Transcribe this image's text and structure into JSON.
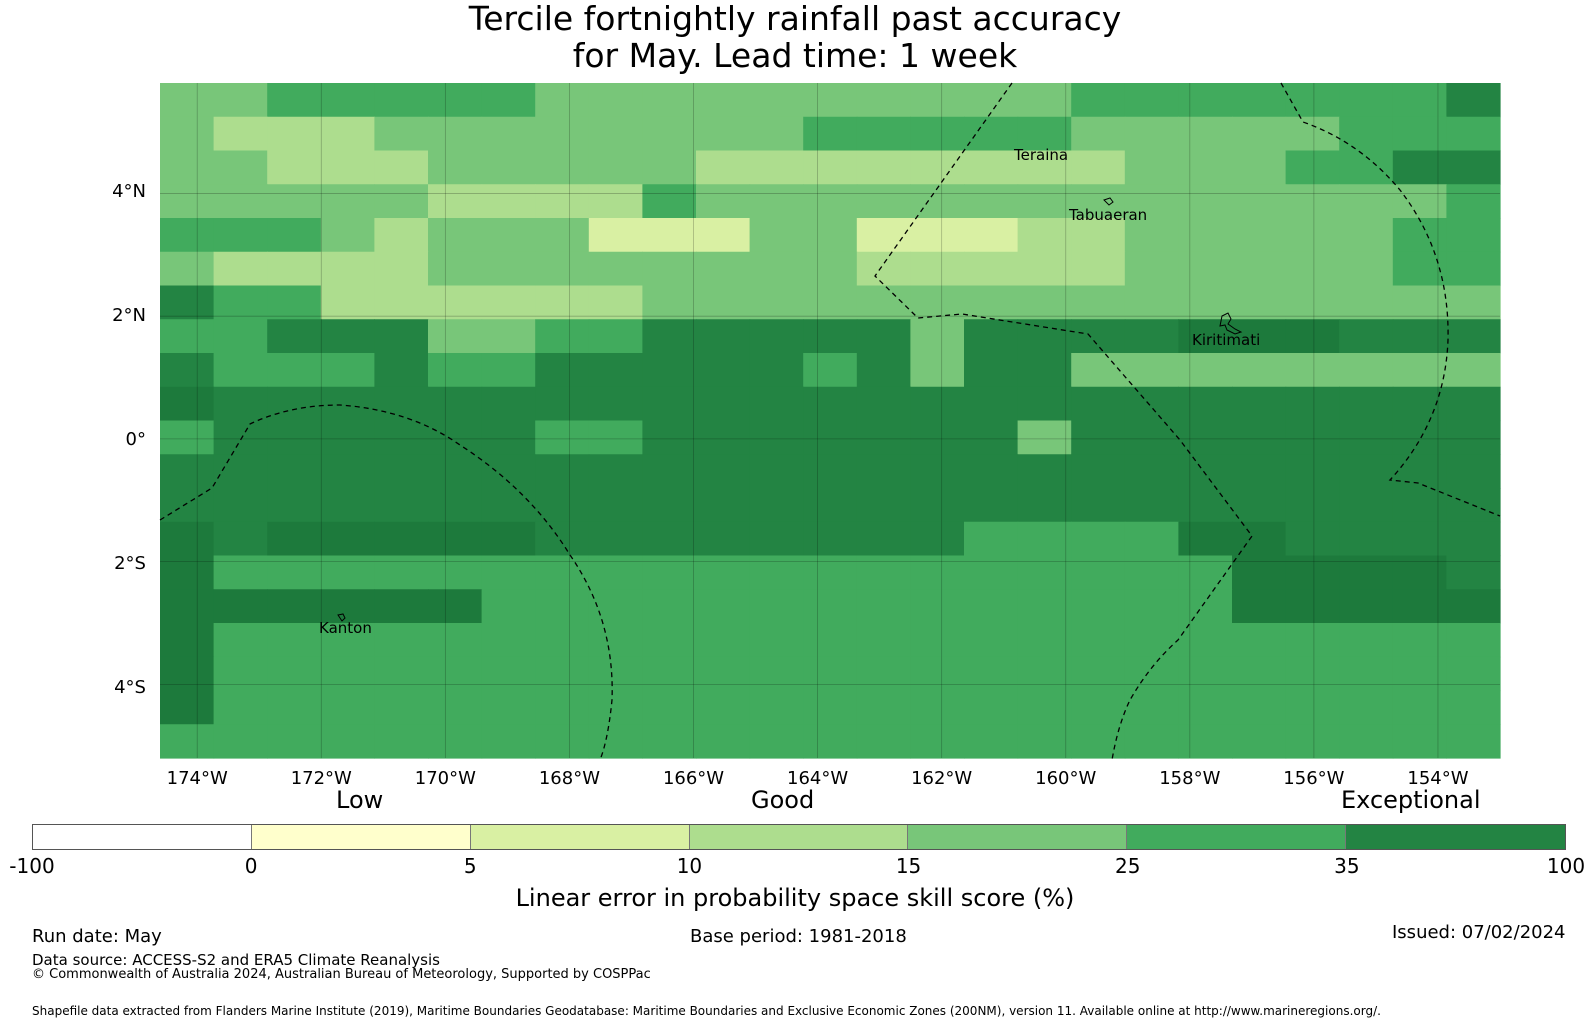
{
  "title_line1": "Tercile fortnightly rainfall past accuracy",
  "title_line2": "for May. Lead time: 1 week",
  "map": {
    "lon_range": [
      -174.6,
      -153.0
    ],
    "lat_range": [
      -5.2,
      5.8
    ],
    "lon_ticks": [
      "174°W",
      "172°W",
      "170°W",
      "168°W",
      "166°W",
      "164°W",
      "162°W",
      "160°W",
      "158°W",
      "156°W",
      "154°W"
    ],
    "lat_ticks": [
      "4°N",
      "2°N",
      "0°",
      "2°S",
      "4°S"
    ],
    "places": [
      "Teraina",
      "Tabuaeran",
      "Kiritimati",
      "Kanton"
    ],
    "grid_levels": [
      "4455555444444444455555556",
      "4333444444445555544444555",
      "4433344444333333334445566",
      "4444433335444444444444445",
      "5554344422244222334444455",
      "4333344444444333334444455",
      "6553333334444444444444444",
      "5566644556666646666777666",
      "6555655666665646644444444",
      "7666666666666666666666666",
      "5666666556666666466666666",
      "6666666666666666666666666",
      "6666666666666666666666666",
      "7677777666666665555776666",
      "7555555555555555555577776",
      "7777775555555555555577777",
      "7555555555555555555555555",
      "7555555555555555555555555",
      "7555555555555555555555555",
      "5555555555555555555555555"
    ],
    "colors": {
      "level_2": "#d9f0a3",
      "level_3": "#addd8e",
      "level_4": "#78c679",
      "level_5": "#41ab5d",
      "level_6": "#238443",
      "level_7": "#1d7a3c"
    }
  },
  "legend": {
    "categories": [
      "Low",
      "Good",
      "Exceptional"
    ],
    "segments": [
      {
        "from": "-100",
        "to": "0",
        "color": "#ffffff"
      },
      {
        "from": "0",
        "to": "5",
        "color": "#ffffcc"
      },
      {
        "from": "5",
        "to": "10",
        "color": "#d9f0a3"
      },
      {
        "from": "10",
        "to": "15",
        "color": "#addd8e"
      },
      {
        "from": "15",
        "to": "25",
        "color": "#78c679"
      },
      {
        "from": "25",
        "to": "35",
        "color": "#41ab5d"
      },
      {
        "from": "35",
        "to": "100",
        "color": "#238443"
      }
    ],
    "ticks": [
      "-100",
      "0",
      "5",
      "10",
      "15",
      "25",
      "35",
      "100"
    ],
    "axis_label": "Linear error in probability space skill score (%)"
  },
  "footer": {
    "run_date": "Run date: May",
    "base_period": "Base period: 1981-2018",
    "issued": "Issued: 07/02/2024",
    "data_source": "Data source: ACCESS-S2 and ERA5 Climate Reanalysis",
    "copyright": "© Commonwealth of Australia 2024, Australian Bureau of Meteorology, Supported by COSPPac",
    "shapefile": "Shapefile data extracted from Flanders Marine Institute (2019), Maritime Boundaries Geodatabase: Maritime Boundaries and Exclusive Economic Zones (200NM), version 11. Available online at http://www.marineregions.org/."
  }
}
